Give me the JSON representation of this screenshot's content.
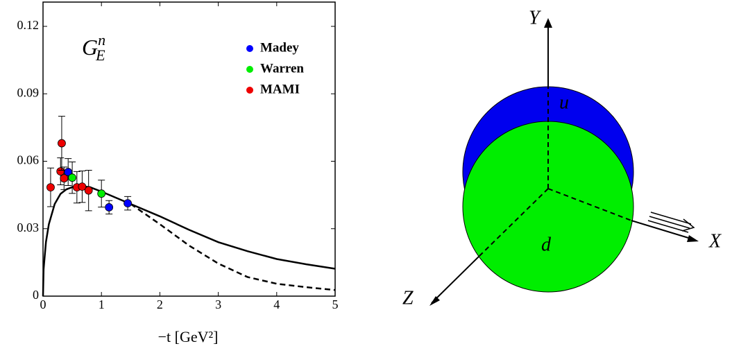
{
  "chart_data": {
    "type": "scatter",
    "annotation": {
      "symbol": "G",
      "superscript": "n",
      "subscript": "E"
    },
    "xlabel": "−t  [GeV²]",
    "xlim": [
      0,
      5
    ],
    "ylim": [
      0,
      0.1308
    ],
    "xticks": [
      0,
      1,
      2,
      3,
      4,
      5
    ],
    "yticks": [
      0,
      0.03,
      0.06,
      0.09,
      0.12
    ],
    "series": [
      {
        "name": "Madey",
        "color": "#0000ff",
        "x": [
          0.43,
          1.13,
          1.45
        ],
        "values": [
          0.0552,
          0.0395,
          0.0413
        ],
        "errors": [
          0.006,
          0.003,
          0.003
        ]
      },
      {
        "name": "Warren",
        "color": "#00ee00",
        "x": [
          0.5,
          1.0
        ],
        "values": [
          0.0527,
          0.0456
        ],
        "errors": [
          0.007,
          0.006
        ]
      },
      {
        "name": "MAMI",
        "color": "#ee0000",
        "x": [
          0.13,
          0.3,
          0.32,
          0.36,
          0.58,
          0.67,
          0.78
        ],
        "values": [
          0.0484,
          0.0555,
          0.068,
          0.0524,
          0.0484,
          0.0487,
          0.047
        ],
        "errors": [
          0.0086,
          0.006,
          0.012,
          0.005,
          0.007,
          0.007,
          0.009
        ]
      }
    ],
    "curves": [
      {
        "color": "#000000",
        "dashed": false,
        "x": [
          0,
          0.01,
          0.05,
          0.1,
          0.2,
          0.3,
          0.4,
          0.5,
          0.6,
          0.8,
          1,
          1.5,
          2,
          2.5,
          3,
          3.5,
          4,
          4.5,
          5
        ],
        "values": [
          0,
          0.012,
          0.024,
          0.032,
          0.041,
          0.0455,
          0.0475,
          0.0485,
          0.049,
          0.0485,
          0.0465,
          0.041,
          0.0355,
          0.0295,
          0.024,
          0.02,
          0.0165,
          0.0142,
          0.0122
        ]
      },
      {
        "color": "#000000",
        "dashed": true,
        "x": [
          1.5,
          2,
          2.5,
          3,
          3.5,
          4,
          4.5,
          5
        ],
        "values": [
          0.041,
          0.032,
          0.0225,
          0.0145,
          0.0085,
          0.0055,
          0.004,
          0.0027
        ]
      }
    ]
  },
  "diagram": {
    "axes": {
      "x": "X",
      "y": "Y",
      "z": "Z"
    },
    "labels": {
      "u": "u",
      "d": "d"
    }
  }
}
